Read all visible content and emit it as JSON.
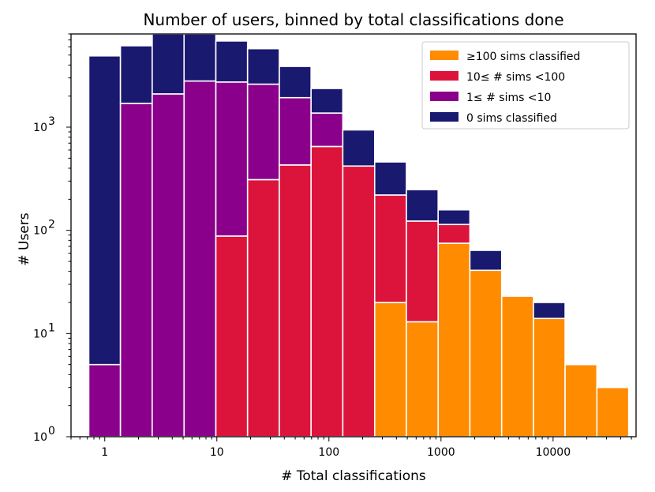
{
  "chart_data": {
    "type": "bar",
    "stacked": true,
    "title": "Number of users, binned by total classifications done",
    "xlabel": "# Total classifications",
    "ylabel": "# Users",
    "x_scale": "log",
    "y_scale": "log",
    "xlim": [
      0.5,
      55000
    ],
    "ylim": [
      1,
      8000
    ],
    "x_ticks": [
      {
        "value": 1,
        "label": "1"
      },
      {
        "value": 10,
        "label": "10"
      },
      {
        "value": 100,
        "label": "100"
      },
      {
        "value": 1000,
        "label": "1000"
      },
      {
        "value": 10000,
        "label": "10000"
      }
    ],
    "y_ticks": [
      {
        "value": 1,
        "base": "10",
        "exp": "0"
      },
      {
        "value": 10,
        "base": "10",
        "exp": "1"
      },
      {
        "value": 100,
        "base": "10",
        "exp": "2"
      },
      {
        "value": 1000,
        "base": "10",
        "exp": "3"
      }
    ],
    "bin_edges": [
      0.72,
      1.38,
      2.65,
      5.1,
      9.8,
      18.8,
      36.1,
      69.3,
      133,
      256,
      491,
      943,
      1810,
      3480,
      6680,
      12800,
      24600,
      47300
    ],
    "series": [
      {
        "name": "≥100 sims classified",
        "color": "#ff8c00",
        "values": [
          0,
          0,
          0,
          0,
          0,
          0,
          0,
          0,
          0,
          20,
          13,
          75,
          41,
          23,
          14,
          5,
          3
        ]
      },
      {
        "name": "10≤ # sims <100",
        "color": "#dc143c",
        "values": [
          0,
          0,
          0,
          0,
          88,
          310,
          430,
          650,
          420,
          200,
          110,
          39,
          0,
          0,
          0,
          0,
          0
        ]
      },
      {
        "name": "1≤ # sims <10",
        "color": "#8b008b",
        "values": [
          5,
          1700,
          2100,
          2800,
          2650,
          2300,
          1500,
          720,
          0,
          0,
          0,
          0,
          0,
          0,
          0,
          0,
          0
        ]
      },
      {
        "name": "0 sims classified",
        "color": "#191970",
        "values": [
          4900,
          4450,
          6000,
          5350,
          4100,
          3150,
          1950,
          1000,
          520,
          240,
          125,
          44,
          23,
          0,
          6,
          0,
          0
        ]
      }
    ],
    "grid": false,
    "legend_position": "top-right"
  }
}
